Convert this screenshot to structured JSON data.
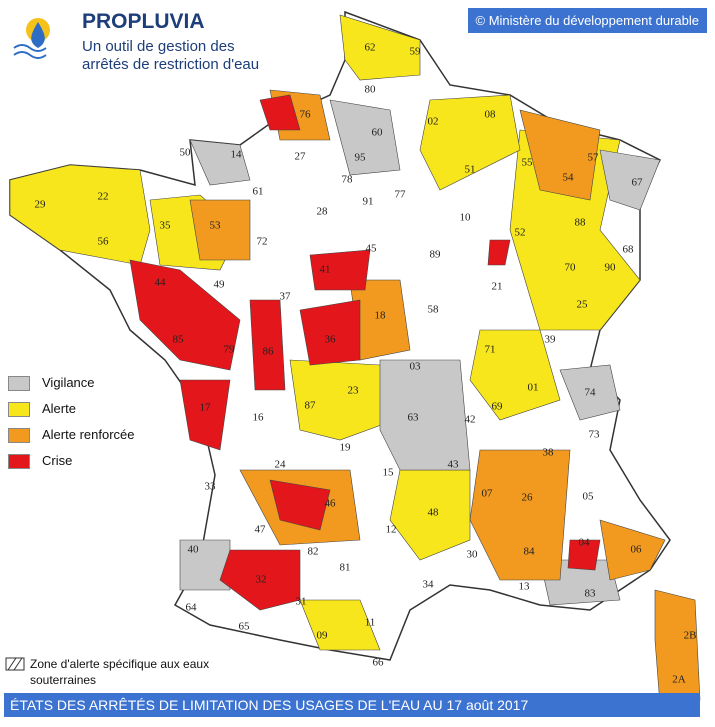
{
  "header": {
    "title": "PROPLUVIA",
    "subtitle_lines": [
      "Un outil de gestion des",
      "arrêtés de restriction d'eau"
    ]
  },
  "copyright": "© Ministère du développement durable",
  "legend": [
    {
      "label": "Vigilance",
      "color": "#c8c8c8"
    },
    {
      "label": "Alerte",
      "color": "#f7e61c"
    },
    {
      "label": "Alerte renforcée",
      "color": "#f29a1f"
    },
    {
      "label": "Crise",
      "color": "#e3161b"
    }
  ],
  "groundwater_note_lines": [
    "Zone d'alerte spécifique aux eaux",
    "souterraines"
  ],
  "footer": "ÉTATS DES ARRÊTÉS DE LIMITATION DES USAGES DE L'EAU AU 17 août 2017",
  "departments": [
    "62",
    "59",
    "80",
    "76",
    "60",
    "02",
    "08",
    "50",
    "14",
    "27",
    "95",
    "51",
    "55",
    "57",
    "54",
    "67",
    "29",
    "22",
    "35",
    "61",
    "28",
    "78",
    "91",
    "77",
    "10",
    "52",
    "88",
    "68",
    "56",
    "53",
    "72",
    "45",
    "89",
    "70",
    "90",
    "44",
    "49",
    "37",
    "41",
    "18",
    "58",
    "21",
    "25",
    "85",
    "79",
    "86",
    "36",
    "39",
    "03",
    "71",
    "01",
    "74",
    "17",
    "16",
    "87",
    "23",
    "63",
    "42",
    "69",
    "38",
    "73",
    "19",
    "15",
    "43",
    "24",
    "33",
    "46",
    "07",
    "26",
    "05",
    "47",
    "48",
    "12",
    "82",
    "04",
    "06",
    "40",
    "81",
    "30",
    "84",
    "32",
    "34",
    "13",
    "83",
    "64",
    "65",
    "31",
    "09",
    "11",
    "66",
    "2B",
    "2A"
  ]
}
